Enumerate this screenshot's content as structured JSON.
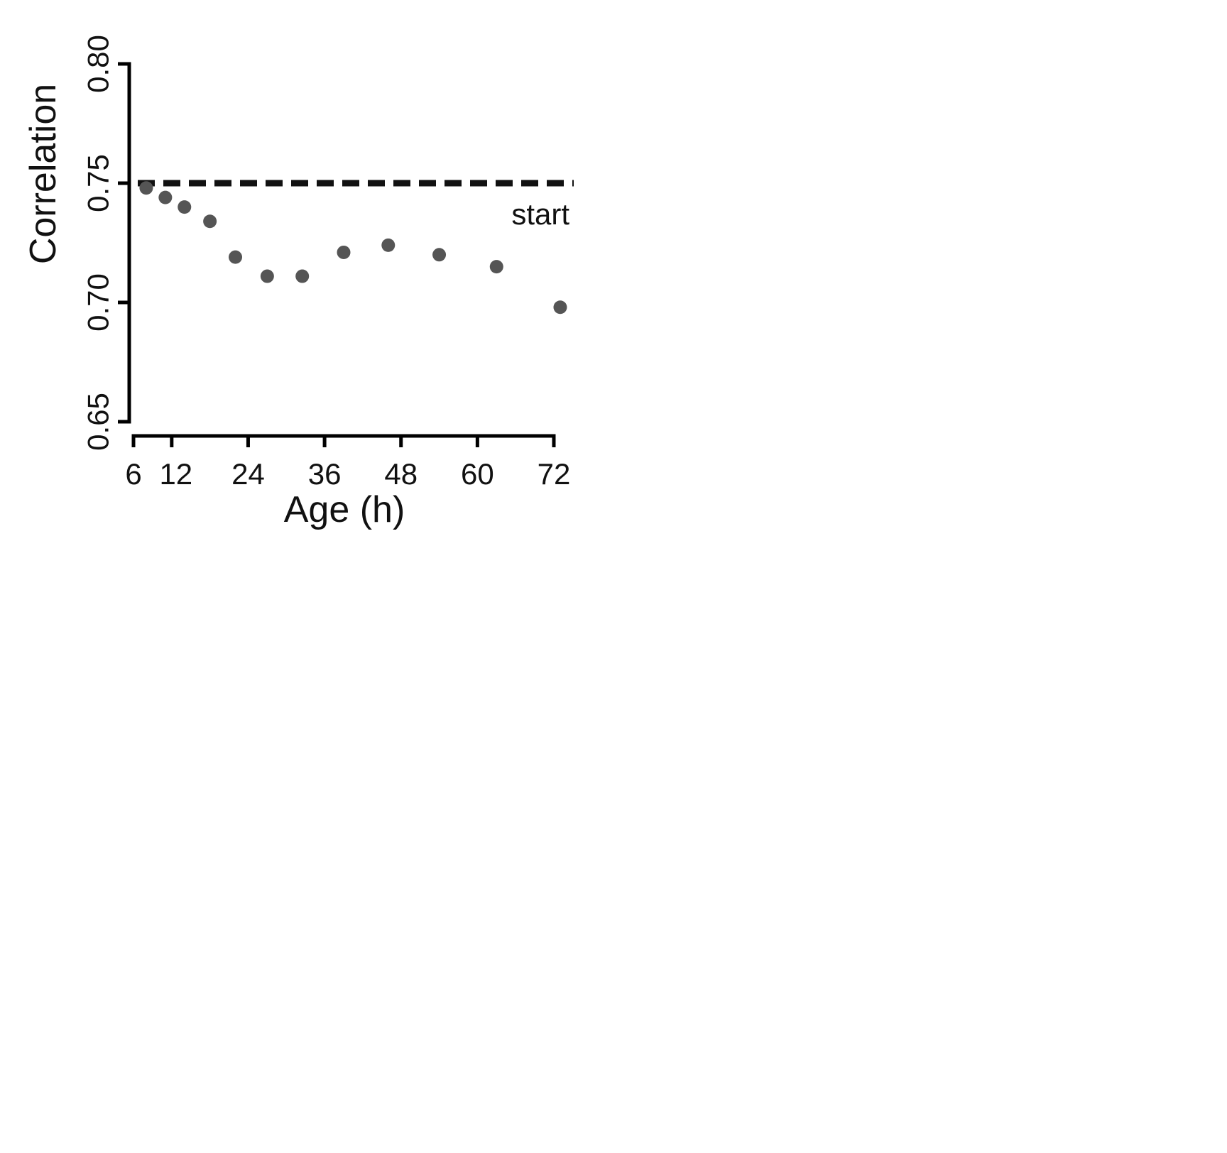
{
  "chart_data": {
    "type": "scatter",
    "xlabel": "Age (h)",
    "ylabel": "Correlation",
    "xlim": [
      6,
      72
    ],
    "ylim": [
      0.65,
      0.8
    ],
    "xticks": [
      6,
      12,
      24,
      36,
      48,
      60,
      72
    ],
    "xtick_labels": [
      "6",
      "12",
      "24",
      "36",
      "48",
      "60",
      "72"
    ],
    "yticks": [
      0.65,
      0.7,
      0.75,
      0.8
    ],
    "ytick_labels": [
      "0.65",
      "0.70",
      "0.75",
      "0.80"
    ],
    "grid": false,
    "reference_line": {
      "y": 0.75,
      "style": "dashed",
      "label": "start"
    },
    "series": [
      {
        "x": [
          8,
          11,
          14,
          18,
          22,
          27,
          32.5,
          39,
          46,
          54,
          63,
          73
        ],
        "y": [
          0.748,
          0.744,
          0.74,
          0.734,
          0.719,
          0.711,
          0.711,
          0.721,
          0.724,
          0.72,
          0.715,
          0.698
        ]
      }
    ],
    "colors": {
      "points": "#555555",
      "axes": "#000000",
      "reference_line": "#111111"
    }
  }
}
